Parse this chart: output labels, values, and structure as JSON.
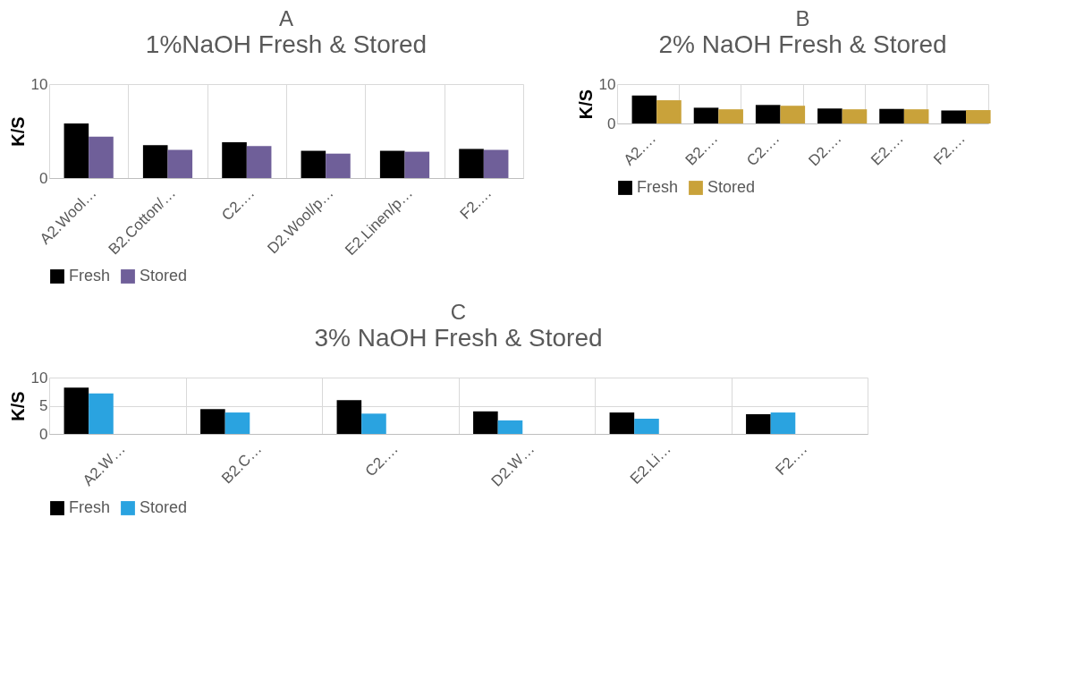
{
  "chart_data": [
    {
      "type": "bar",
      "title": "A",
      "subtitle": "1%NaOH Fresh & Stored",
      "ylabel": "K/S",
      "categories": [
        "A2.Wool…",
        "B2.Cotton/…",
        "C2.…",
        "D2.Wool/p…",
        "E2.Linen/p…",
        "F2.…"
      ],
      "series": [
        {
          "name": "Fresh",
          "color": "#000000",
          "values": [
            5.8,
            3.5,
            3.8,
            2.9,
            2.9,
            3.1
          ]
        },
        {
          "name": "Stored",
          "color": "#6f5f99",
          "values": [
            4.4,
            3.0,
            3.4,
            2.6,
            2.8,
            3.0
          ]
        }
      ],
      "ylim": [
        0,
        10
      ],
      "yticks": [
        0,
        10
      ],
      "grid": true,
      "legend": "bottom"
    },
    {
      "type": "bar",
      "title": "B",
      "subtitle": "2% NaOH Fresh & Stored",
      "ylabel": "K/S",
      "categories": [
        "A2.…",
        "B2.…",
        "C2.…",
        "D2.…",
        "E2.…",
        "F2.…"
      ],
      "series": [
        {
          "name": "Fresh",
          "color": "#000000",
          "values": [
            7.1,
            4.0,
            4.7,
            3.8,
            3.7,
            3.3
          ]
        },
        {
          "name": "Stored",
          "color": "#c9a23a",
          "values": [
            5.9,
            3.6,
            4.5,
            3.6,
            3.6,
            3.4
          ]
        }
      ],
      "ylim": [
        0,
        10
      ],
      "yticks": [
        0,
        10
      ],
      "grid": true,
      "legend": "bottom"
    },
    {
      "type": "bar",
      "title": "C",
      "subtitle": "3% NaOH Fresh & Stored",
      "ylabel": "K/S",
      "categories": [
        "A2.W…",
        "B2.C…",
        "C2.…",
        "D2.W…",
        "E2.Li…",
        "F2.…"
      ],
      "series": [
        {
          "name": "Fresh",
          "color": "#000000",
          "values": [
            8.2,
            4.4,
            6.0,
            4.0,
            3.8,
            3.5
          ]
        },
        {
          "name": "Stored",
          "color": "#2aa3e0",
          "values": [
            7.2,
            3.8,
            3.6,
            2.4,
            2.7,
            3.8
          ]
        }
      ],
      "ylim": [
        0,
        10
      ],
      "yticks": [
        0,
        5,
        10
      ],
      "grid": true,
      "legend": "bottom"
    }
  ]
}
